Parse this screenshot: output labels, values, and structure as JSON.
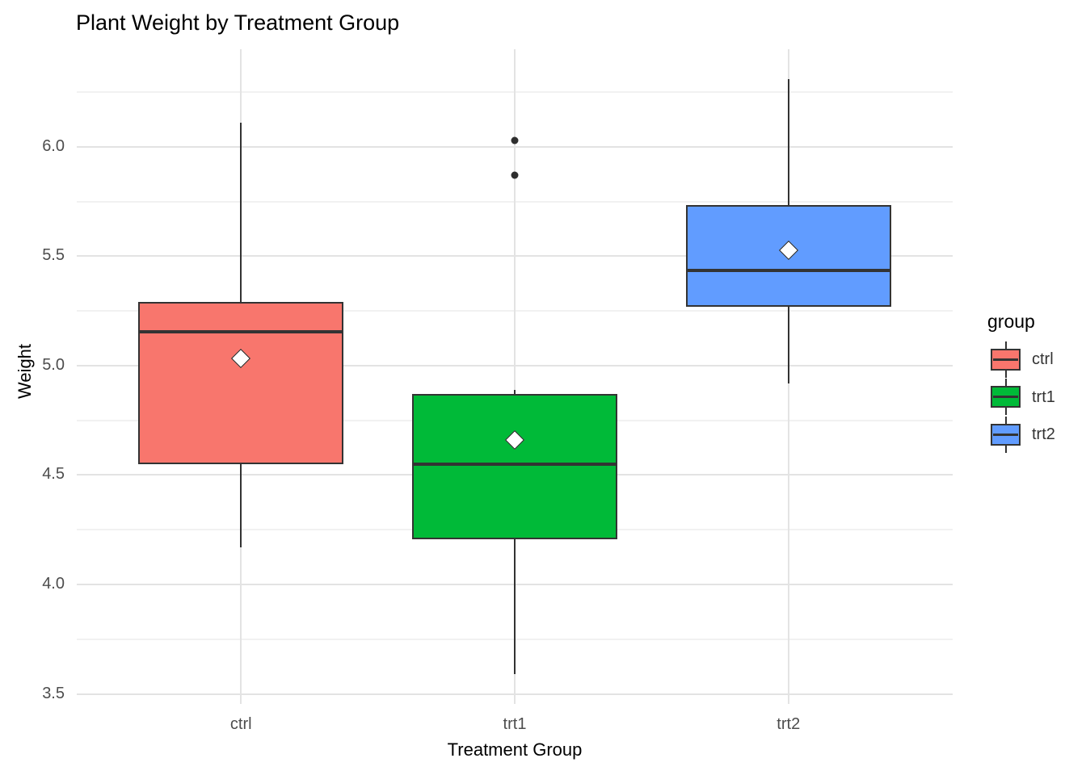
{
  "figure": {
    "title": "Plant Weight by Treatment Group"
  },
  "chart_data": {
    "type": "boxplot",
    "title": "Plant Weight by Treatment Group",
    "xlabel": "Treatment Group",
    "ylabel": "Weight",
    "categories": [
      "ctrl",
      "trt1",
      "trt2"
    ],
    "ylim": [
      3.454,
      6.446
    ],
    "yticks": [
      3.5,
      4.0,
      4.5,
      5.0,
      5.5,
      6.0
    ],
    "ytick_labels": [
      "3.5",
      "4.0",
      "4.5",
      "5.0",
      "5.5",
      "6.0"
    ],
    "yticks_minor": [
      3.75,
      4.25,
      4.75,
      5.25,
      5.75,
      6.25
    ],
    "grid": {
      "horizontal_major": true,
      "horizontal_minor": true,
      "vertical_major_at_categories": true
    },
    "mean_marker": "white-diamond-black-border",
    "legend": {
      "title": "group",
      "position": "right",
      "entries": [
        {
          "label": "ctrl",
          "color": "#F8766D"
        },
        {
          "label": "trt1",
          "color": "#00BA38"
        },
        {
          "label": "trt2",
          "color": "#619CFF"
        }
      ]
    },
    "series": [
      {
        "name": "ctrl",
        "fill": "#F8766D",
        "whisker_low": 4.17,
        "q1": 4.55,
        "median": 5.155,
        "q3": 5.2925,
        "whisker_high": 6.11,
        "mean": 5.032,
        "outliers": []
      },
      {
        "name": "trt1",
        "fill": "#00BA38",
        "whisker_low": 3.59,
        "q1": 4.2075,
        "median": 4.55,
        "q3": 4.87,
        "whisker_high": 4.89,
        "mean": 4.661,
        "outliers": [
          5.87,
          6.03
        ]
      },
      {
        "name": "trt2",
        "fill": "#619CFF",
        "whisker_low": 4.92,
        "q1": 5.2675,
        "median": 5.435,
        "q3": 5.735,
        "whisker_high": 6.31,
        "mean": 5.526,
        "outliers": []
      }
    ],
    "colors": {
      "box_border": "#333333",
      "median_line": "#333333",
      "outlier_point": "#2e2e2e",
      "grid_major": "#E3E3E3",
      "grid_minor": "#F1F1F1",
      "tick_label": "#4D4D4D",
      "text": "#000000",
      "background": "#FFFFFF",
      "mean_fill": "#FFFFFF",
      "mean_border": "#1a1a1a"
    }
  }
}
